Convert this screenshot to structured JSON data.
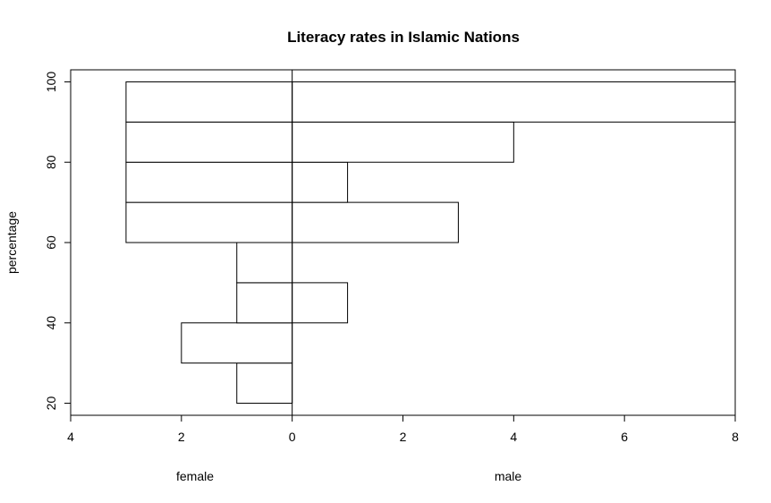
{
  "chart_data": {
    "type": "bar",
    "orientation": "horizontal-back-to-back",
    "title": "Literacy rates in Islamic Nations",
    "ylabel": "percentage",
    "bins": [
      [
        20,
        30
      ],
      [
        30,
        40
      ],
      [
        40,
        50
      ],
      [
        50,
        60
      ],
      [
        60,
        70
      ],
      [
        70,
        80
      ],
      [
        80,
        90
      ],
      [
        90,
        100
      ]
    ],
    "series": [
      {
        "name": "female",
        "values": [
          1,
          2,
          1,
          1,
          3,
          3,
          3,
          3
        ]
      },
      {
        "name": "male",
        "values": [
          0,
          0,
          1,
          0,
          3,
          1,
          4,
          8
        ]
      }
    ],
    "x_ticks": [
      "4",
      "2",
      "0",
      "2",
      "4",
      "6",
      "8"
    ],
    "y_ticks": [
      "20",
      "40",
      "60",
      "80",
      "100"
    ],
    "xlim": [
      -4,
      8
    ],
    "ylim": [
      17,
      103
    ],
    "colors": {
      "bar_fill": "#ffffff",
      "bar_stroke": "#000000",
      "axis": "#000000"
    }
  }
}
